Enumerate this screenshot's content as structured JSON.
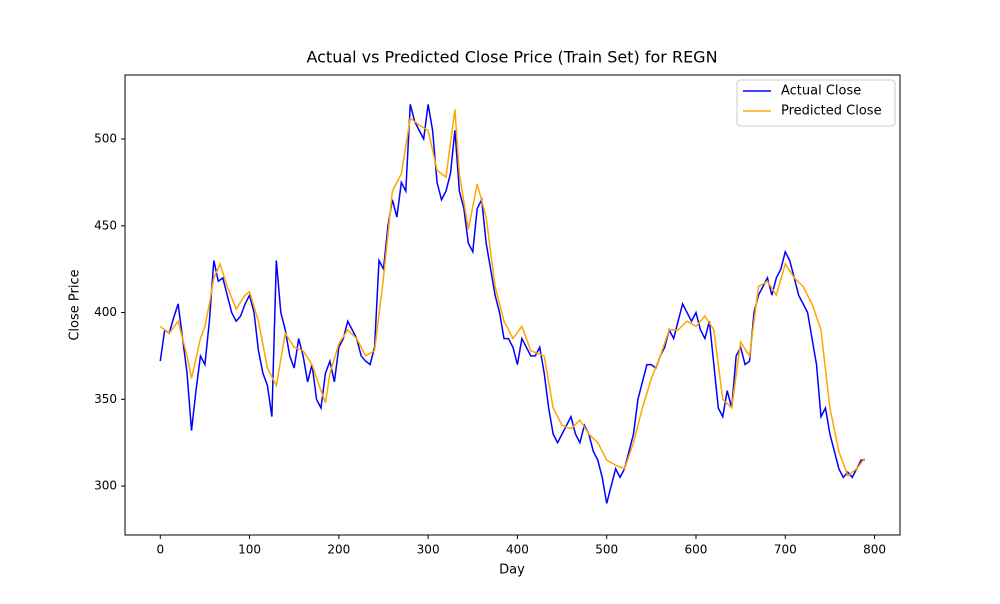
{
  "chart_data": {
    "type": "line",
    "title": "Actual vs Predicted Close Price (Train Set) for REGN",
    "x_label": "Day",
    "y_label": "Close Price",
    "xlim": [
      -39.5,
      828.5
    ],
    "ylim": [
      271.8,
      536.9
    ],
    "xticks": [
      0,
      100,
      200,
      300,
      400,
      500,
      600,
      700,
      800
    ],
    "yticks": [
      300,
      350,
      400,
      450,
      500
    ],
    "legend": "upper right",
    "series": [
      {
        "name": "Actual Close",
        "color": "#0000ff",
        "x": [
          0,
          5,
          10,
          15,
          20,
          25,
          30,
          35,
          40,
          45,
          50,
          55,
          60,
          65,
          70,
          75,
          80,
          85,
          90,
          95,
          100,
          105,
          110,
          115,
          120,
          125,
          130,
          135,
          140,
          145,
          150,
          155,
          160,
          165,
          170,
          175,
          180,
          185,
          190,
          195,
          200,
          205,
          210,
          215,
          220,
          225,
          230,
          235,
          240,
          245,
          250,
          255,
          260,
          265,
          270,
          275,
          280,
          285,
          290,
          295,
          300,
          305,
          310,
          315,
          320,
          325,
          330,
          335,
          340,
          345,
          350,
          355,
          360,
          365,
          370,
          375,
          380,
          385,
          390,
          395,
          400,
          405,
          410,
          415,
          420,
          425,
          430,
          435,
          440,
          445,
          450,
          455,
          460,
          465,
          470,
          475,
          480,
          485,
          490,
          495,
          500,
          505,
          510,
          515,
          520,
          525,
          530,
          535,
          540,
          545,
          550,
          555,
          560,
          565,
          570,
          575,
          580,
          585,
          590,
          595,
          600,
          605,
          610,
          615,
          620,
          625,
          630,
          635,
          640,
          645,
          650,
          655,
          660,
          665,
          670,
          675,
          680,
          685,
          690,
          695,
          700,
          705,
          710,
          715,
          720,
          725,
          730,
          735,
          740,
          745,
          750,
          755,
          760,
          765,
          770,
          775,
          780,
          785,
          789
        ],
        "values": [
          372,
          390,
          388,
          397,
          405,
          385,
          365,
          332,
          355,
          375,
          370,
          395,
          430,
          418,
          420,
          410,
          400,
          395,
          398,
          405,
          410,
          400,
          378,
          365,
          358,
          340,
          430,
          400,
          390,
          375,
          368,
          385,
          375,
          360,
          370,
          350,
          345,
          365,
          372,
          360,
          380,
          385,
          395,
          390,
          385,
          375,
          372,
          370,
          380,
          430,
          425,
          450,
          465,
          455,
          475,
          470,
          520,
          510,
          505,
          500,
          520,
          505,
          475,
          465,
          470,
          480,
          505,
          470,
          460,
          440,
          435,
          460,
          465,
          440,
          425,
          410,
          400,
          385,
          385,
          380,
          370,
          385,
          380,
          375,
          375,
          380,
          365,
          345,
          330,
          325,
          330,
          335,
          340,
          330,
          325,
          335,
          330,
          320,
          315,
          305,
          290,
          300,
          310,
          305,
          310,
          320,
          330,
          350,
          360,
          370,
          370,
          368,
          375,
          380,
          390,
          385,
          395,
          405,
          400,
          395,
          400,
          390,
          385,
          395,
          370,
          345,
          340,
          355,
          345,
          375,
          380,
          370,
          372,
          400,
          410,
          415,
          420,
          410,
          420,
          425,
          435,
          430,
          420,
          410,
          405,
          400,
          385,
          370,
          340,
          345,
          330,
          320,
          310,
          305,
          308,
          305,
          310,
          315,
          315
        ]
      },
      {
        "name": "Predicted Close",
        "color": "#ffa500",
        "x": [
          0,
          10,
          20,
          30,
          35,
          45,
          50,
          55,
          60,
          67,
          75,
          85,
          95,
          100,
          110,
          120,
          130,
          140,
          150,
          160,
          170,
          180,
          185,
          190,
          200,
          210,
          220,
          230,
          240,
          250,
          260,
          270,
          280,
          290,
          300,
          310,
          320,
          330,
          335,
          345,
          355,
          365,
          375,
          385,
          395,
          405,
          415,
          430,
          440,
          450,
          460,
          470,
          480,
          490,
          500,
          510,
          520,
          530,
          540,
          550,
          560,
          570,
          580,
          590,
          600,
          610,
          620,
          630,
          640,
          650,
          660,
          670,
          680,
          690,
          700,
          710,
          720,
          730,
          740,
          750,
          760,
          770,
          780,
          789
        ],
        "values": [
          392,
          388,
          395,
          375,
          362,
          385,
          392,
          405,
          420,
          428,
          415,
          402,
          410,
          412,
          395,
          368,
          358,
          388,
          380,
          378,
          370,
          355,
          348,
          365,
          382,
          390,
          385,
          375,
          378,
          420,
          470,
          480,
          512,
          508,
          505,
          482,
          478,
          517,
          480,
          448,
          474,
          455,
          415,
          395,
          385,
          392,
          378,
          375,
          345,
          335,
          333,
          338,
          330,
          325,
          315,
          312,
          310,
          325,
          345,
          362,
          375,
          390,
          390,
          395,
          392,
          398,
          390,
          350,
          345,
          383,
          375,
          415,
          418,
          410,
          428,
          420,
          415,
          405,
          390,
          345,
          320,
          306,
          310,
          316
        ]
      }
    ]
  }
}
